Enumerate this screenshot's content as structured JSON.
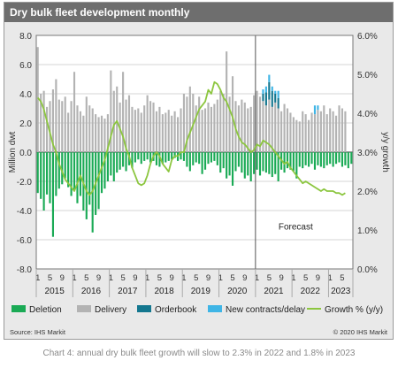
{
  "header": {
    "title": "Dry bulk fleet development monthly"
  },
  "caption": "Chart 4: annual dry bulk fleet growth will slow to 2.3% in 2022 and 1.8% in 2023",
  "chart_data": {
    "type": "bar",
    "title": "Dry bulk fleet development monthly",
    "ylabel": "Million dwt",
    "y2label": "y/y growth",
    "ylim": [
      -8,
      8
    ],
    "y2lim": [
      0,
      6
    ],
    "y_ticks": [
      "8.0",
      "6.0",
      "4.0",
      "2.0",
      "0.0",
      "-2.0",
      "-4.0",
      "-6.0",
      "-8.0"
    ],
    "y2_ticks": [
      "6.0%",
      "5.0%",
      "4.0%",
      "3.0%",
      "2.0%",
      "1.0%",
      "0.0%"
    ],
    "years": [
      "2015",
      "2016",
      "2017",
      "2018",
      "2019",
      "2020",
      "2021",
      "2022",
      "2023"
    ],
    "month_ticks": [
      "1",
      "5",
      "9"
    ],
    "annotation": "Forecast",
    "forecast_start_index": 72,
    "source": "Source: IHS Markit",
    "copyright": "© 2020 IHS Markit",
    "grid": true,
    "legend_position": "bottom",
    "series": [
      {
        "name": "Deletion",
        "color": "#1aaa55",
        "axis": "left",
        "kind": "bar",
        "values": [
          -2.8,
          -3.2,
          -4.0,
          -2.9,
          -3.5,
          -5.8,
          -3.0,
          -2.5,
          -2.2,
          -1.8,
          -2.4,
          -3.0,
          -2.6,
          -3.5,
          -3.0,
          -4.0,
          -4.6,
          -3.6,
          -5.5,
          -4.3,
          -3.9,
          -2.8,
          -2.5,
          -2.0,
          -1.6,
          -2.0,
          -1.4,
          -1.2,
          -1.0,
          -1.3,
          -0.9,
          -1.1,
          -0.7,
          -0.5,
          -0.8,
          -0.6,
          -0.5,
          -0.7,
          -0.6,
          -0.9,
          -1.0,
          -0.8,
          -0.7,
          -0.6,
          -0.5,
          -0.4,
          -0.6,
          -0.5,
          -0.6,
          -1.0,
          -1.3,
          -0.9,
          -0.7,
          -0.8,
          -1.5,
          -1.2,
          -0.8,
          -0.7,
          -0.6,
          -0.9,
          -1.4,
          -1.1,
          -1.8,
          -1.6,
          -2.3,
          -1.3,
          -1.0,
          -1.4,
          -1.8,
          -1.6,
          -2.0,
          -1.5,
          -1.2,
          -1.6,
          -1.3,
          -1.4,
          -1.5,
          -1.7,
          -1.5,
          -2.0,
          -1.2,
          -1.4,
          -1.1,
          -1.2,
          -1.3,
          -1.8,
          -1.0,
          -1.1,
          -0.9,
          -1.0,
          -0.8,
          -1.2,
          -0.9,
          -1.0,
          -1.1,
          -0.9,
          -0.8,
          -1.0,
          -0.8,
          -0.7,
          -1.0,
          -0.9,
          -1.1,
          -0.8
        ]
      },
      {
        "name": "Delivery",
        "color": "#b3b3b3",
        "axis": "left",
        "kind": "bar",
        "values": [
          7.2,
          4.0,
          4.2,
          3.1,
          3.5,
          4.3,
          5.0,
          3.6,
          3.5,
          3.8,
          2.7,
          3.5,
          5.5,
          3.2,
          2.8,
          2.5,
          3.8,
          3.2,
          3.0,
          2.6,
          2.4,
          2.5,
          2.3,
          2.6,
          5.6,
          4.2,
          4.5,
          3.4,
          5.5,
          3.6,
          3.9,
          3.1,
          2.9,
          3.0,
          2.7,
          3.2,
          3.9,
          3.5,
          3.4,
          2.8,
          3.1,
          2.6,
          2.7,
          2.9,
          2.5,
          2.8,
          2.4,
          3.0,
          4.0,
          3.8,
          4.5,
          4.0,
          3.2,
          3.8,
          2.9,
          3.0,
          3.4,
          3.1,
          3.3,
          3.6,
          4.2,
          4.0,
          6.9,
          3.8,
          5.2,
          3.5,
          3.2,
          3.6,
          3.4,
          3.0,
          3.1,
          3.9,
          4.2,
          3.8,
          3.5,
          3.2,
          3.6,
          3.1,
          3.4,
          3.0,
          2.8,
          3.3,
          3.0,
          2.7,
          2.4,
          2.2,
          2.1,
          2.8,
          2.6,
          2.2,
          2.7,
          2.6,
          2.9,
          2.8,
          3.2,
          2.6,
          3.0,
          2.8,
          2.5,
          3.2,
          3.0,
          2.8
        ]
      },
      {
        "name": "Orderbook",
        "color": "#14778f",
        "axis": "left",
        "kind": "bar",
        "values": [
          0,
          0,
          0,
          0,
          0,
          0,
          0,
          0,
          0,
          0,
          0,
          0,
          0,
          0,
          0,
          0,
          0,
          0,
          0,
          0,
          0,
          0,
          0,
          0,
          0,
          0,
          0,
          0,
          0,
          0,
          0,
          0,
          0,
          0,
          0,
          0,
          0,
          0,
          0,
          0,
          0,
          0,
          0,
          0,
          0,
          0,
          0,
          0,
          0,
          0,
          0,
          0,
          0,
          0,
          0,
          0,
          0,
          0,
          0,
          0,
          0,
          0,
          0,
          0,
          0,
          0,
          0,
          0,
          0,
          0,
          0,
          0,
          0,
          0,
          0.5,
          0.9,
          1.2,
          1.1,
          0.6,
          0.7,
          0,
          0,
          0,
          0,
          0,
          0,
          0,
          0,
          0,
          0,
          0,
          0,
          0,
          0,
          0,
          0,
          0,
          0,
          0,
          0,
          0,
          0
        ]
      },
      {
        "name": "New contracts/delay",
        "color": "#3fb5e6",
        "axis": "left",
        "kind": "bar",
        "values": [
          0,
          0,
          0,
          0,
          0,
          0,
          0,
          0,
          0,
          0,
          0,
          0,
          0,
          0,
          0,
          0,
          0,
          0,
          0,
          0,
          0,
          0,
          0,
          0,
          0,
          0,
          0,
          0,
          0,
          0,
          0,
          0,
          0,
          0,
          0,
          0,
          0,
          0,
          0,
          0,
          0,
          0,
          0,
          0,
          0,
          0,
          0,
          0,
          0,
          0,
          0,
          0,
          0,
          0,
          0,
          0,
          0,
          0,
          0,
          0,
          0,
          0,
          0,
          0,
          0,
          0,
          0,
          0,
          0,
          0,
          0,
          0,
          0,
          0,
          0.3,
          0.4,
          0.5,
          0.3,
          0.2,
          0.5,
          0,
          0,
          0,
          0,
          0,
          0,
          0,
          0,
          0,
          0,
          0,
          0.6,
          0.3,
          0,
          0,
          0,
          0,
          0,
          0,
          0,
          0,
          0
        ]
      },
      {
        "name": "Growth % (y/y)",
        "color": "#8cc63f",
        "axis": "right",
        "kind": "line",
        "values": [
          4.4,
          4.3,
          4.1,
          3.8,
          3.5,
          3.2,
          3.0,
          2.7,
          2.5,
          2.3,
          2.2,
          2.1,
          2.0,
          2.2,
          2.4,
          2.2,
          2.0,
          1.9,
          2.0,
          2.2,
          2.4,
          2.6,
          2.8,
          3.1,
          3.4,
          3.7,
          3.8,
          3.6,
          3.4,
          3.1,
          2.9,
          2.6,
          2.4,
          2.2,
          2.15,
          2.2,
          2.4,
          2.7,
          2.9,
          3.0,
          2.9,
          2.7,
          2.6,
          2.5,
          2.8,
          2.9,
          2.9,
          3.0,
          3.0,
          3.3,
          3.5,
          3.7,
          3.9,
          4.1,
          4.2,
          4.3,
          4.6,
          4.5,
          4.8,
          4.75,
          4.6,
          4.4,
          4.3,
          4.1,
          3.9,
          3.6,
          3.4,
          3.25,
          3.2,
          3.1,
          3.0,
          3.05,
          3.2,
          3.15,
          3.3,
          3.25,
          3.2,
          3.1,
          3.0,
          2.9,
          2.8,
          2.7,
          2.75,
          2.6,
          2.5,
          2.4,
          2.3,
          2.2,
          2.25,
          2.2,
          2.15,
          2.1,
          2.05,
          2.0,
          2.05,
          2.0,
          2.0,
          2.0,
          1.95,
          1.95,
          1.9,
          1.95
        ]
      }
    ]
  }
}
